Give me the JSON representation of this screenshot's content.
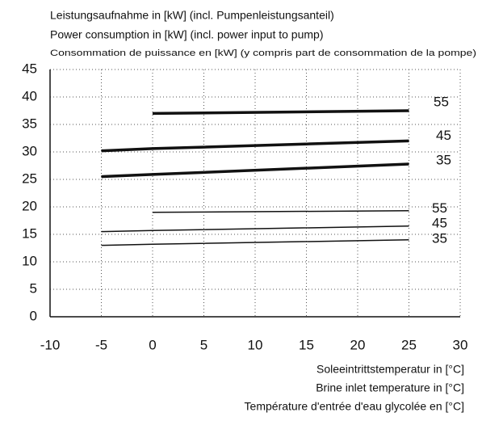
{
  "chart_data": {
    "type": "line",
    "title": [
      "Leistungsaufnahme in [kW] (incl. Pumpenleistungsanteil)",
      "Power consumption in [kW] (incl. power input to pump)",
      "Consommation de puissance en [kW] (y compris part de consommation de la pompe)"
    ],
    "x_label": [
      "Soleeintrittstemperatur in [°C]",
      "Brine inlet temperature in [°C]",
      "Température d'entrée d'eau glycolée en [°C]"
    ],
    "x": [
      -5,
      0,
      25
    ],
    "series": [
      {
        "name": "55",
        "color": "#111111",
        "line_width": 3.5,
        "values": [
          null,
          37,
          37.5
        ]
      },
      {
        "name": "45",
        "color": "#111111",
        "line_width": 3.5,
        "values": [
          30.2,
          30.6,
          32
        ]
      },
      {
        "name": "35",
        "color": "#111111",
        "line_width": 3.5,
        "values": [
          25.5,
          25.9,
          27.8
        ]
      },
      {
        "name": "55",
        "color": "#111111",
        "line_width": 1.5,
        "values": [
          null,
          19,
          19.3
        ]
      },
      {
        "name": "45",
        "color": "#111111",
        "line_width": 1.5,
        "values": [
          15.5,
          15.7,
          16.5
        ]
      },
      {
        "name": "35",
        "color": "#111111",
        "line_width": 1.5,
        "values": [
          13,
          13.2,
          14
        ]
      }
    ],
    "xlim": [
      -10,
      30
    ],
    "xticks": [
      -10,
      -5,
      0,
      5,
      10,
      15,
      20,
      25,
      30
    ],
    "ylim": [
      0,
      45
    ],
    "yticks": [
      0,
      5,
      10,
      15,
      20,
      25,
      30,
      35,
      40,
      45
    ],
    "grid": true
  }
}
